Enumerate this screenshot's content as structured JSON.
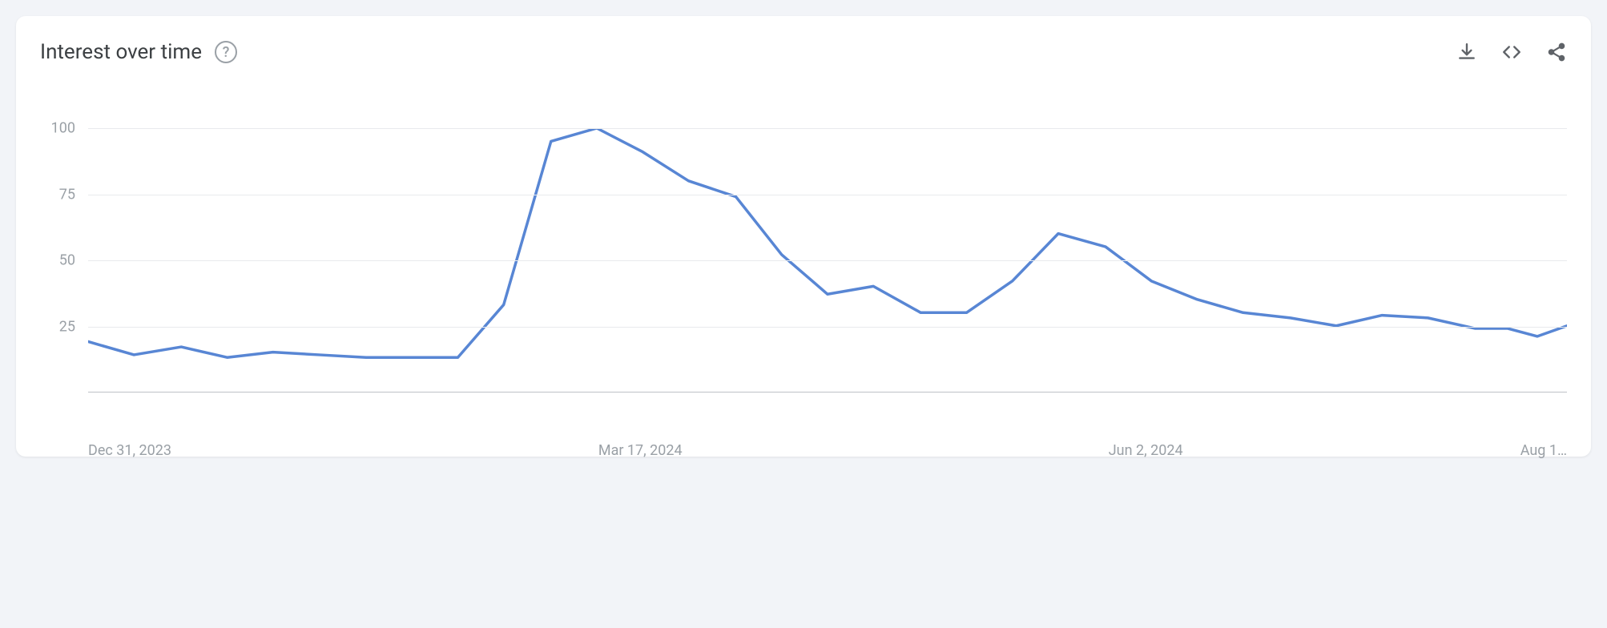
{
  "card": {
    "title": "Interest over time",
    "help_tooltip": "?"
  },
  "actions": {
    "download": "download-icon",
    "embed": "embed-icon",
    "share": "share-icon"
  },
  "chart": {
    "type": "line",
    "title_fontsize": 26,
    "title_color": "#3c4043",
    "background_color": "#ffffff",
    "page_background_color": "#f2f4f8",
    "grid_color": "#e8eaed",
    "axis_line_color": "#bdc1c6",
    "tick_label_color": "#9aa0a6",
    "tick_label_fontsize": 18,
    "line_color": "#5886d4",
    "line_width": 3.5,
    "ylim": [
      0,
      100
    ],
    "y_ticks": [
      25,
      50,
      75,
      100
    ],
    "x_ticks": [
      {
        "label": "Dec 31, 2023",
        "position": 0.0
      },
      {
        "label": "Mar 17, 2024",
        "position": 0.345
      },
      {
        "label": "Jun 2, 2024",
        "position": 0.69
      },
      {
        "label": "Aug 1…",
        "position": 1.0
      }
    ],
    "data_points": [
      {
        "x": 0.0,
        "y": 19
      },
      {
        "x": 0.031,
        "y": 14
      },
      {
        "x": 0.063,
        "y": 17
      },
      {
        "x": 0.094,
        "y": 13
      },
      {
        "x": 0.125,
        "y": 15
      },
      {
        "x": 0.156,
        "y": 14
      },
      {
        "x": 0.188,
        "y": 13
      },
      {
        "x": 0.219,
        "y": 13
      },
      {
        "x": 0.25,
        "y": 13
      },
      {
        "x": 0.281,
        "y": 33
      },
      {
        "x": 0.313,
        "y": 95
      },
      {
        "x": 0.344,
        "y": 100
      },
      {
        "x": 0.375,
        "y": 91
      },
      {
        "x": 0.406,
        "y": 80
      },
      {
        "x": 0.438,
        "y": 74
      },
      {
        "x": 0.469,
        "y": 52
      },
      {
        "x": 0.5,
        "y": 37
      },
      {
        "x": 0.531,
        "y": 40
      },
      {
        "x": 0.563,
        "y": 30
      },
      {
        "x": 0.594,
        "y": 30
      },
      {
        "x": 0.625,
        "y": 42
      },
      {
        "x": 0.656,
        "y": 60
      },
      {
        "x": 0.688,
        "y": 55
      },
      {
        "x": 0.719,
        "y": 42
      },
      {
        "x": 0.75,
        "y": 35
      },
      {
        "x": 0.781,
        "y": 30
      },
      {
        "x": 0.813,
        "y": 28
      },
      {
        "x": 0.844,
        "y": 25
      },
      {
        "x": 0.875,
        "y": 29
      },
      {
        "x": 0.906,
        "y": 28
      },
      {
        "x": 0.938,
        "y": 24
      },
      {
        "x": 0.96,
        "y": 24
      },
      {
        "x": 0.98,
        "y": 21
      },
      {
        "x": 1.0,
        "y": 25
      }
    ]
  }
}
